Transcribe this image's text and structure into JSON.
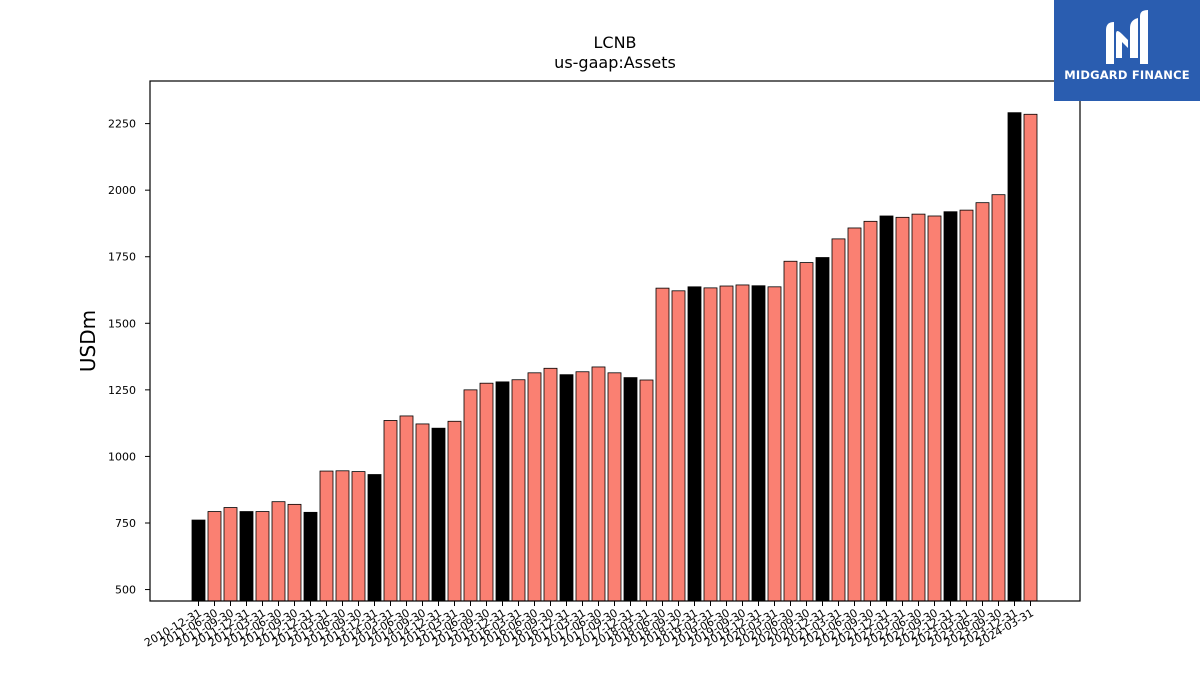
{
  "logo": {
    "text": "MIDGARD FINANCE",
    "color": "#2a5db0"
  },
  "chart_data": {
    "type": "bar",
    "title": "LCNB",
    "subtitle": "us-gaap:Assets",
    "xlabel": "",
    "ylabel": "USDm",
    "ylim": [
      457,
      2410
    ],
    "yticks": [
      500,
      750,
      1000,
      1250,
      1500,
      1750,
      2000,
      2250
    ],
    "grid": false,
    "colors": {
      "q4": "#000000",
      "other": "#fa8072",
      "edge": "#000000"
    },
    "categories": [
      "2010-12-31",
      "2011-06-30",
      "2011-09-30",
      "2011-12-31",
      "2012-03-31",
      "2012-06-30",
      "2012-09-30",
      "2012-12-31",
      "2013-03-31",
      "2013-06-30",
      "2013-09-30",
      "2013-12-31",
      "2014-03-31",
      "2014-06-30",
      "2014-09-30",
      "2014-12-31",
      "2015-03-31",
      "2015-06-30",
      "2015-09-30",
      "2015-12-31",
      "2016-03-31",
      "2016-06-30",
      "2016-09-30",
      "2016-12-31",
      "2017-03-31",
      "2017-06-30",
      "2017-09-30",
      "2017-12-31",
      "2018-03-31",
      "2018-06-30",
      "2018-09-30",
      "2018-12-31",
      "2019-03-31",
      "2019-06-30",
      "2019-09-30",
      "2019-12-31",
      "2020-03-31",
      "2020-06-30",
      "2020-09-30",
      "2020-12-31",
      "2021-03-31",
      "2021-06-30",
      "2021-09-30",
      "2021-12-31",
      "2022-03-31",
      "2022-06-30",
      "2022-09-30",
      "2022-12-31",
      "2023-03-31",
      "2023-06-30",
      "2023-09-30",
      "2023-12-31",
      "2024-03-31"
    ],
    "values": [
      761,
      793,
      808,
      793,
      793,
      830,
      820,
      790,
      945,
      946,
      943,
      932,
      1135,
      1152,
      1122,
      1106,
      1132,
      1250,
      1275,
      1280,
      1288,
      1314,
      1331,
      1307,
      1318,
      1336,
      1314,
      1296,
      1287,
      1632,
      1622,
      1637,
      1633,
      1640,
      1644,
      1641,
      1637,
      1733,
      1728,
      1747,
      1817,
      1858,
      1883,
      1903,
      1898,
      1910,
      1903,
      1919,
      1925,
      1953,
      1983,
      2291,
      2285
    ]
  }
}
